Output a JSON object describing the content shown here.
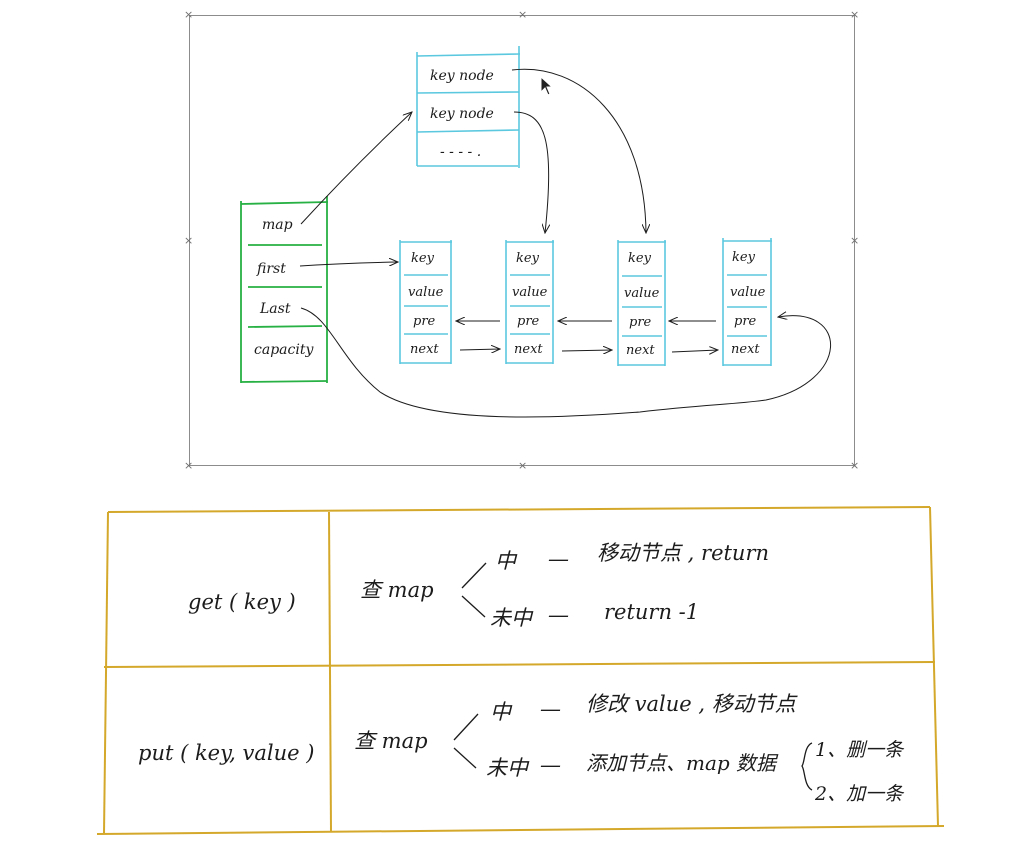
{
  "diagram": {
    "hash_table": {
      "rows": [
        "key   node",
        "key   node",
        "- - - - ."
      ]
    },
    "lru_cache": {
      "fields": [
        "map",
        "first",
        "Last",
        "capacity"
      ]
    },
    "list_nodes": [
      {
        "fields": [
          "key",
          "value",
          "pre",
          "next"
        ]
      },
      {
        "fields": [
          "key",
          "value",
          "pre",
          "next"
        ]
      },
      {
        "fields": [
          "key",
          "value",
          "pre",
          "next"
        ]
      },
      {
        "fields": [
          "key",
          "value",
          "pre",
          "next"
        ]
      }
    ],
    "colors": {
      "cyan": "#5bc8df",
      "green": "#27b043",
      "gold": "#d4a82a",
      "ink": "#1c1c1c"
    }
  },
  "table": {
    "get": {
      "op": "get ( key )",
      "lookup": "查 map",
      "hit_label": "中",
      "hit_dash": "—",
      "hit_action": "移动节点 , return",
      "miss_label": "未中",
      "miss_dash": "—",
      "miss_action": "return -1"
    },
    "put": {
      "op": "put ( key, value )",
      "lookup": "查 map",
      "hit_label": "中",
      "hit_dash": "—",
      "hit_action": "修改 value , 移动节点",
      "miss_label": "未中",
      "miss_dash": "—",
      "miss_action": "添加节点、map 数据",
      "miss_steps": [
        "1、删一条",
        "2、加一条"
      ]
    }
  }
}
